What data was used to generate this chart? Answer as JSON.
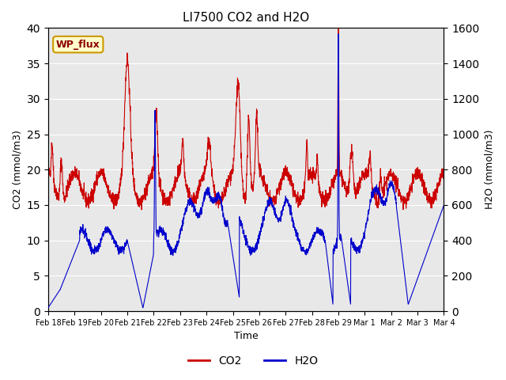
{
  "title": "LI7500 CO2 and H2O",
  "xlabel": "Time",
  "ylabel_left": "CO2 (mmol/m3)",
  "ylabel_right": "H2O (mmol/m3)",
  "ylim_left": [
    0,
    40
  ],
  "ylim_right": [
    0,
    1600
  ],
  "yticks_left": [
    0,
    5,
    10,
    15,
    20,
    25,
    30,
    35,
    40
  ],
  "yticks_right": [
    0,
    200,
    400,
    600,
    800,
    1000,
    1200,
    1400,
    1600
  ],
  "co2_color": "#cc0000",
  "h2o_color": "#0000cc",
  "background_color": "#e8e8e8",
  "annotation_text": "WP_flux",
  "annotation_bg": "#ffffcc",
  "annotation_border": "#cc9900",
  "legend_co2": "CO2",
  "legend_h2o": "H2O",
  "xtick_labels": [
    "Feb 18",
    "Feb 19",
    "Feb 20",
    "Feb 21",
    "Feb 22",
    "Feb 23",
    "Feb 24",
    "Feb 25",
    "Feb 26",
    "Feb 27",
    "Feb 28",
    "Feb 29",
    "Mar 1",
    "Mar 2",
    "Mar 3",
    "Mar 4"
  ],
  "n_points": 2304
}
